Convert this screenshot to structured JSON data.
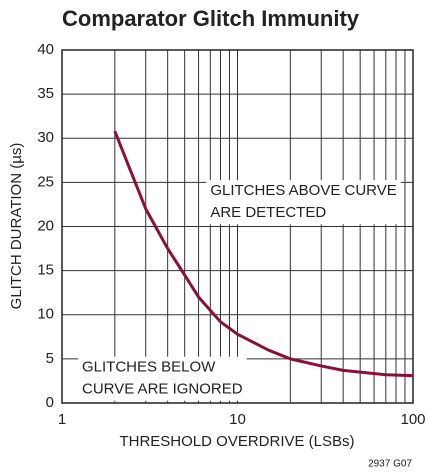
{
  "chart_data": {
    "type": "line",
    "title": "Comparator Glitch Immunity",
    "x_label": "THRESHOLD OVERDRIVE (LSBs)",
    "y_label": "GLITCH DURATION (µs)",
    "note": "2937 G07",
    "x": [
      2,
      3,
      4,
      5,
      6,
      7,
      8,
      10,
      15,
      20,
      30,
      40,
      50,
      70,
      100
    ],
    "series": [
      {
        "name": "Glitch Immunity",
        "color": "#8c1035",
        "values": [
          30.8,
          22,
          17.5,
          14.5,
          12,
          10.5,
          9.2,
          7.8,
          6,
          5,
          4.2,
          3.7,
          3.5,
          3.2,
          3.1
        ]
      }
    ],
    "xlim": [
      1,
      100
    ],
    "xticks": [
      1,
      10,
      100
    ],
    "xminor_ticks": [
      2,
      3,
      4,
      5,
      6,
      7,
      8,
      9,
      20,
      30,
      40,
      50,
      60,
      70,
      80,
      90
    ],
    "log_x": true,
    "ylim": [
      0,
      40
    ],
    "yticks": [
      0,
      5,
      10,
      15,
      20,
      25,
      30,
      35,
      40
    ],
    "grid": true,
    "annotations": [
      {
        "lines": [
          "GLITCHES ABOVE CURVE",
          "ARE DETECTED"
        ],
        "x": 7,
        "y": 24
      },
      {
        "lines": [
          "GLITCHES BELOW",
          "CURVE ARE IGNORED"
        ],
        "x": 1.3,
        "y": 4
      }
    ]
  }
}
